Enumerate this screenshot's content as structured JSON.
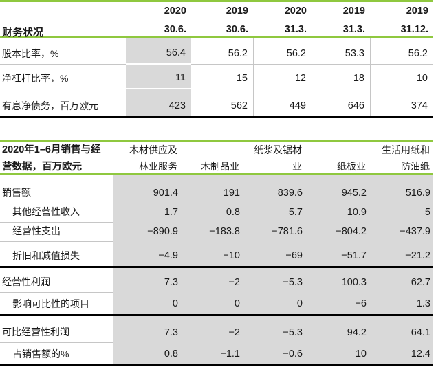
{
  "meta": {
    "accent_green": "#8fc83f",
    "row_gray": "#d9d9d9",
    "hairline_gray": "#c6c6c6",
    "text_color": "#1a1a1a"
  },
  "financial_table": {
    "title": "财务状况",
    "columns": [
      "2020\n30.6.",
      "2019\n30.6.",
      "2020\n31.3.",
      "2019\n31.3.",
      "2019\n31.12."
    ],
    "rows": [
      {
        "label": "股本比率，%",
        "indent": false,
        "values": [
          "56.4",
          "56.2",
          "56.2",
          "53.3",
          "56.2"
        ],
        "divider_after": "hairline"
      },
      {
        "label": "净杠杆比率，%",
        "indent": false,
        "values": [
          "11",
          "15",
          "12",
          "18",
          "10"
        ],
        "divider_after": "hairline"
      },
      {
        "label": "有息净债务，百万欧元",
        "indent": false,
        "values": [
          "423",
          "562",
          "449",
          "646",
          "374"
        ],
        "divider_after": "black"
      }
    ]
  },
  "sales_table": {
    "title": "2020年1–6月销售与经\n营数据，百万欧元",
    "columns": [
      "木材供应及\n林业服务",
      "木制品业",
      "纸浆及锯材\n业",
      "纸板业",
      "生活用纸和\n防油纸"
    ],
    "rows": [
      {
        "label": "销售额",
        "indent": false,
        "values": [
          "901.4",
          "191",
          "839.6",
          "945.2",
          "516.9"
        ],
        "divider_after": "hairline"
      },
      {
        "label": "其他经营性收入",
        "indent": true,
        "values": [
          "1.7",
          "0.8",
          "5.7",
          "10.9",
          "5"
        ],
        "divider_after": "hairline"
      },
      {
        "label": "经营性支出",
        "indent": true,
        "values": [
          "−890.9",
          "−183.8",
          "−781.6",
          "−804.2",
          "−437.9"
        ],
        "divider_after": "hairline"
      },
      {
        "label": "折旧和减值损失",
        "indent": true,
        "values": [
          "−4.9",
          "−10",
          "−69",
          "−51.7",
          "−21.2"
        ],
        "divider_after": "black"
      },
      {
        "label": "经营性利润",
        "indent": false,
        "values": [
          "7.3",
          "−2",
          "−5.3",
          "100.3",
          "62.7"
        ],
        "divider_after": "hairline"
      },
      {
        "label": "影响可比性的项目",
        "indent": true,
        "values": [
          "0",
          "0",
          "0",
          "−6",
          "1.3"
        ],
        "divider_after": "black"
      },
      {
        "label": "可比经营性利润",
        "indent": false,
        "values": [
          "7.3",
          "−2",
          "−5.3",
          "94.2",
          "64.1"
        ],
        "divider_after": "hairline"
      },
      {
        "label": "占销售额的%",
        "indent": true,
        "values": [
          "0.8",
          "−1.1",
          "−0.6",
          "10",
          "12.4"
        ],
        "divider_after": "black"
      }
    ]
  }
}
